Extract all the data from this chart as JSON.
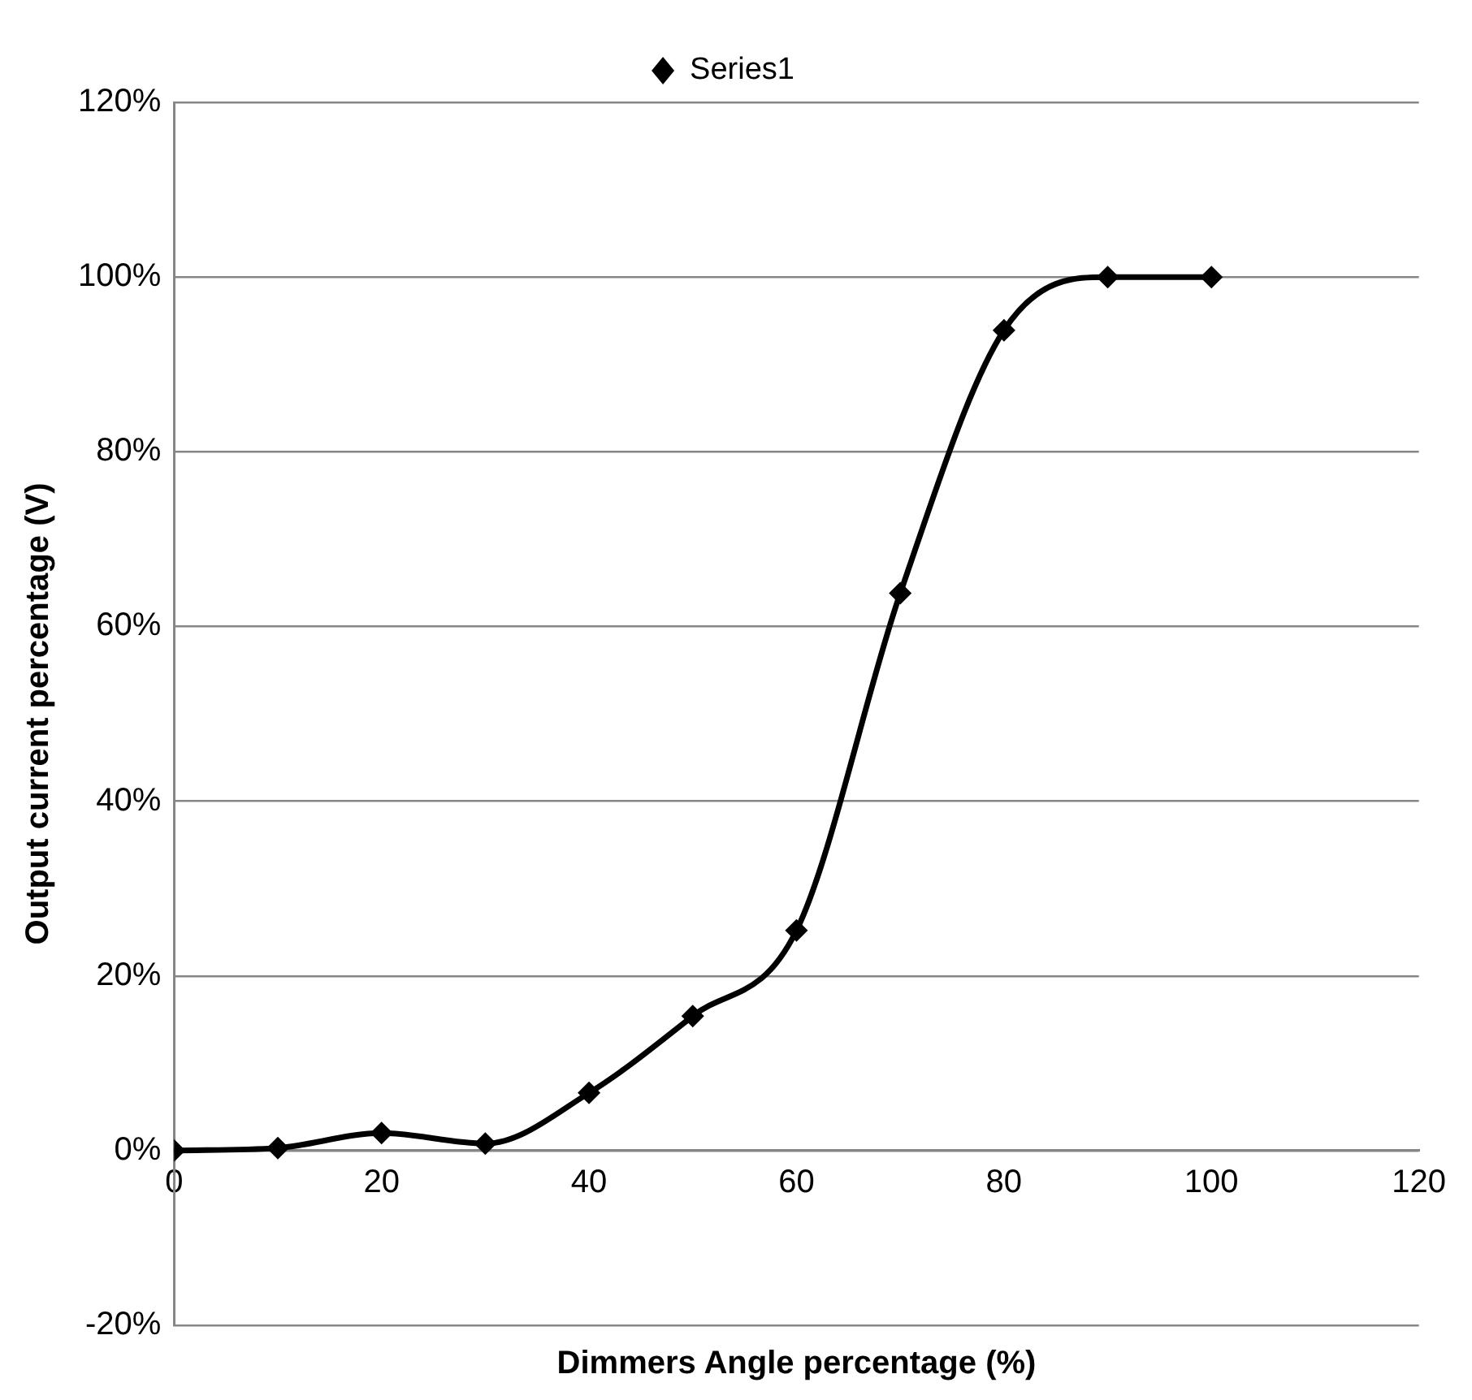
{
  "chart_data": {
    "type": "line",
    "xlabel": "Dimmers Angle percentage (%)",
    "ylabel": "Output current percentage (V)",
    "x": [
      0,
      10,
      20,
      30,
      40,
      50,
      60,
      70,
      80,
      90,
      100
    ],
    "series": [
      {
        "name": "Series1",
        "color": "#000000",
        "values": [
          0,
          0.3,
          2,
          0.8,
          6.6,
          15.4,
          25.2,
          63.8,
          93.9,
          100,
          100
        ]
      }
    ],
    "xlim": [
      0,
      120
    ],
    "xticks": [
      0,
      20,
      40,
      60,
      80,
      100,
      120
    ],
    "ylim": [
      -20,
      120
    ],
    "yticks": [
      {
        "value": -20,
        "label": "-20%"
      },
      {
        "value": 0,
        "label": "0%"
      },
      {
        "value": 20,
        "label": "20%"
      },
      {
        "value": 40,
        "label": "40%"
      },
      {
        "value": 60,
        "label": "60%"
      },
      {
        "value": 80,
        "label": "80%"
      },
      {
        "value": 100,
        "label": "100%"
      },
      {
        "value": 120,
        "label": "120%"
      }
    ],
    "grid": "y",
    "legend": "top",
    "marker": "diamond",
    "line_style": "solid"
  }
}
